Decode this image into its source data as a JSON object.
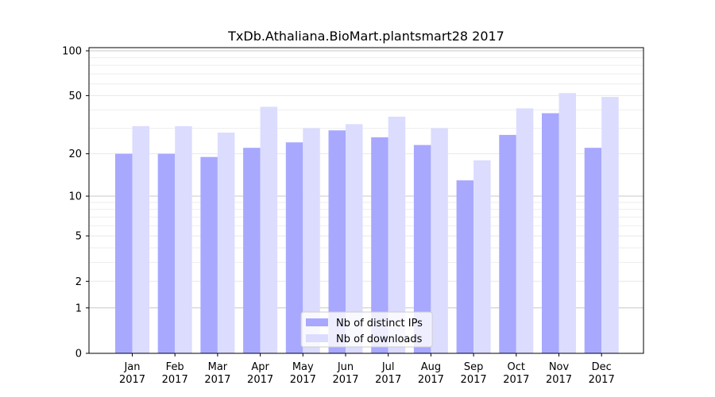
{
  "chart_data": {
    "type": "bar",
    "title": "TxDb.Athaliana.BioMart.plantsmart28 2017",
    "xlabel": "",
    "ylabel": "",
    "y_scale": "log(1+y)",
    "ylim": [
      0,
      100
    ],
    "y_ticks": [
      0,
      1,
      2,
      5,
      10,
      20,
      50,
      100
    ],
    "categories": [
      "Jan\n2017",
      "Feb\n2017",
      "Mar\n2017",
      "Apr\n2017",
      "May\n2017",
      "Jun\n2017",
      "Jul\n2017",
      "Aug\n2017",
      "Sep\n2017",
      "Oct\n2017",
      "Nov\n2017",
      "Dec\n2017"
    ],
    "series": [
      {
        "name": "Nb of distinct IPs",
        "color": "#a8a8ff",
        "values": [
          20,
          20,
          19,
          22,
          24,
          29,
          26,
          23,
          13,
          27,
          38,
          22
        ]
      },
      {
        "name": "Nb of downloads",
        "color": "#dcdcff",
        "values": [
          31,
          31,
          28,
          42,
          30,
          32,
          36,
          30,
          18,
          41,
          52,
          49
        ]
      }
    ],
    "grid": true,
    "legend_position": "bottom-center"
  }
}
